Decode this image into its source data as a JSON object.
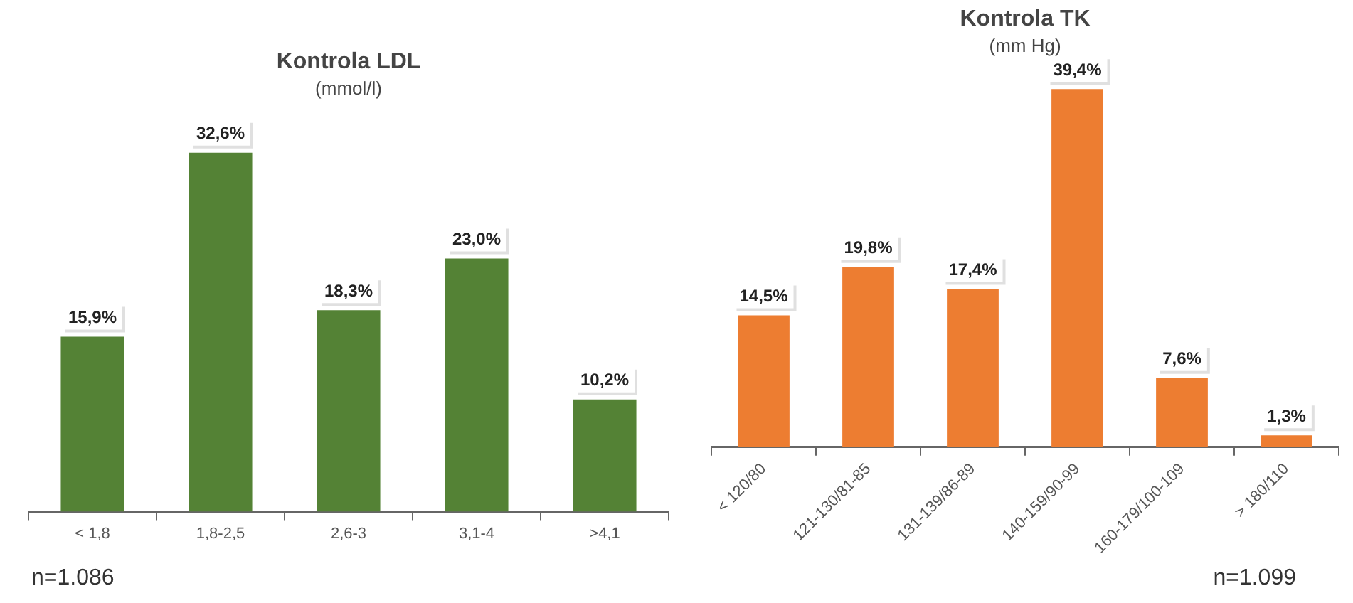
{
  "chart_data": [
    {
      "type": "bar",
      "title": "Kontrola LDL",
      "subtitle": "(mmol/l)",
      "categories": [
        "< 1,8",
        "1,8-2,5",
        "2,6-3",
        "3,1-4",
        ">4,1"
      ],
      "values": [
        15.9,
        32.6,
        18.3,
        23.0,
        10.2
      ],
      "value_labels": [
        "15,9%",
        "32,6%",
        "18,3%",
        "23,0%",
        "10,2%"
      ],
      "color": "#548235",
      "grid": false,
      "legend": false,
      "annotations": [
        "n=1.086"
      ]
    },
    {
      "type": "bar",
      "title": "Kontrola TK",
      "subtitle": "(mm Hg)",
      "categories": [
        "< 120/80",
        "121-130/81-85",
        "131-139/86-89",
        "140-159/90-99",
        "160-179/100-109",
        "> 180/110"
      ],
      "values": [
        14.5,
        19.8,
        17.4,
        39.4,
        7.6,
        1.3
      ],
      "value_labels": [
        "14,5%",
        "19,8%",
        "17,4%",
        "39,4%",
        "7,6%",
        "1,3%"
      ],
      "color": "#ed7d31",
      "grid": false,
      "legend": false,
      "annotations": [
        "n=1.099"
      ]
    }
  ]
}
